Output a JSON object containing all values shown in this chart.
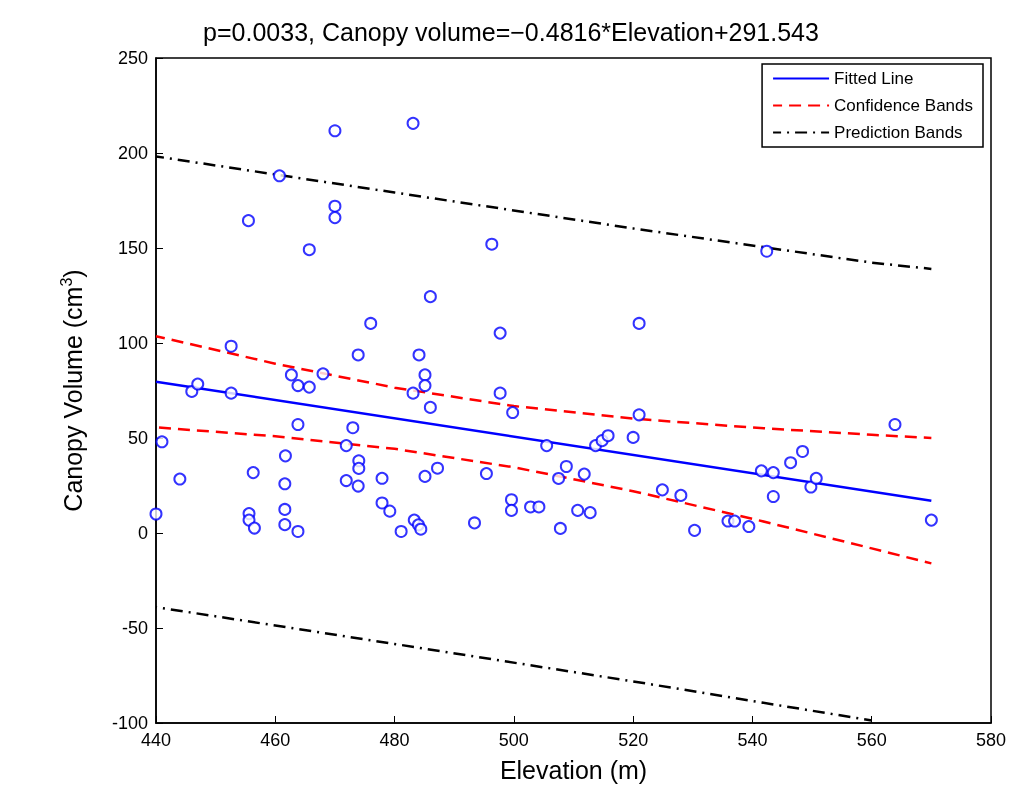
{
  "chart_data": {
    "type": "scatter",
    "title": "p=0.0033, Canopy volume=−0.4816*Elevation+291.543",
    "xlabel": "Elevation (m)",
    "ylabel": "Canopy Volume (cm$^{3}$)",
    "xlim": [
      440,
      580
    ],
    "xticks": [
      440,
      460,
      480,
      500,
      520,
      540,
      560,
      580
    ],
    "ylim": [
      -100,
      250
    ],
    "yticks": [
      -100,
      -50,
      0,
      50,
      100,
      150,
      200,
      250
    ],
    "legend": "top right",
    "series": [
      {
        "color": "#0000ff",
        "marker": "circle",
        "x": [
          440,
          441,
          444,
          446,
          447,
          452.6,
          452.6,
          455.5,
          455.6,
          455.6,
          456.3,
          456.5,
          460.7,
          461.6,
          461.6,
          461.6,
          461.7,
          462.7,
          463.8,
          463.8,
          463.8,
          465.7,
          465.7,
          468,
          470,
          470,
          470,
          471.9,
          471.9,
          473,
          473.9,
          473.9,
          474,
          474,
          476,
          477.9,
          477.9,
          479.2,
          481.1,
          483.1,
          483.1,
          483.3,
          484,
          484.1,
          484.4,
          485.1,
          485.1,
          485.1,
          486,
          486,
          487.2,
          493.4,
          495.4,
          496.3,
          497.7,
          497.7,
          499.6,
          499.6,
          499.8,
          502.8,
          504.2,
          505.5,
          507.5,
          507.8,
          508.8,
          510.7,
          511.8,
          512.8,
          513.7,
          514.8,
          515.8,
          520,
          521,
          521,
          524.9,
          528,
          530.3,
          535.9,
          537,
          539.4,
          541.5,
          542.4,
          543.5,
          543.5,
          546.4,
          548.4,
          549.8,
          550.7,
          563.9,
          570
        ],
        "values": [
          10,
          48,
          28.4,
          74.5,
          78.4,
          98.3,
          73.6,
          164.4,
          10.2,
          6.8,
          31.8,
          2.6,
          188,
          25.9,
          12.4,
          4.4,
          40.6,
          83.2,
          77.6,
          57.1,
          0.8,
          149.1,
          76.8,
          83.8,
          211.7,
          172,
          166,
          46,
          27.6,
          55.4,
          24.7,
          93.7,
          38,
          34,
          110.3,
          28.8,
          15.8,
          11.5,
          0.8,
          215.6,
          73.6,
          6.8,
          4.3,
          93.7,
          2,
          83.2,
          77.6,
          29.8,
          66.1,
          124.4,
          34.1,
          5.3,
          31.3,
          152,
          105.2,
          73.6,
          17.5,
          11.9,
          63.4,
          13.7,
          13.7,
          46,
          28.7,
          2.4,
          35,
          11.9,
          31,
          10.7,
          46,
          48.6,
          51.2,
          50.3,
          110.3,
          62.2,
          22.7,
          19.8,
          1.4,
          6.3,
          6.3,
          3.4,
          32.7,
          148.3,
          31.8,
          19.2,
          37,
          42.9,
          24.2,
          28.8,
          57.1,
          6.8
        ]
      },
      {
        "type": "line",
        "name": "Fitted Line",
        "color": "#0000ff",
        "line_style": "solid",
        "x": [
          440,
          570
        ],
        "values": [
          79.6,
          17.0
        ]
      },
      {
        "type": "line",
        "name": "Confidence Bands",
        "color": "#ff0000",
        "line_style": "dashed",
        "x": [
          440,
          460,
          480,
          500,
          520,
          540,
          560,
          570
        ],
        "values": [
          103.6,
          89.1,
          76.5,
          66.8,
          60.2,
          55.5,
          51.7,
          50
        ]
      },
      {
        "type": "line",
        "color": "#ff0000",
        "line_style": "dashed",
        "x": [
          440,
          460,
          480,
          500,
          520,
          540,
          560,
          570
        ],
        "values": [
          55.6,
          50.9,
          44.3,
          34.6,
          22,
          7.5,
          -8.1,
          -16
        ]
      },
      {
        "type": "line",
        "name": "Prediction Bands",
        "color": "#000000",
        "line_style": "dashdot",
        "x": [
          440,
          480,
          520,
          560,
          570
        ],
        "values": [
          198.2,
          179.2,
          160.3,
          142.3,
          139
        ]
      },
      {
        "type": "line",
        "color": "#000000",
        "line_style": "dashdot",
        "x": [
          440,
          480,
          520,
          560
        ],
        "values": [
          -39,
          -58.4,
          -78.1,
          -98.7
        ]
      }
    ]
  }
}
